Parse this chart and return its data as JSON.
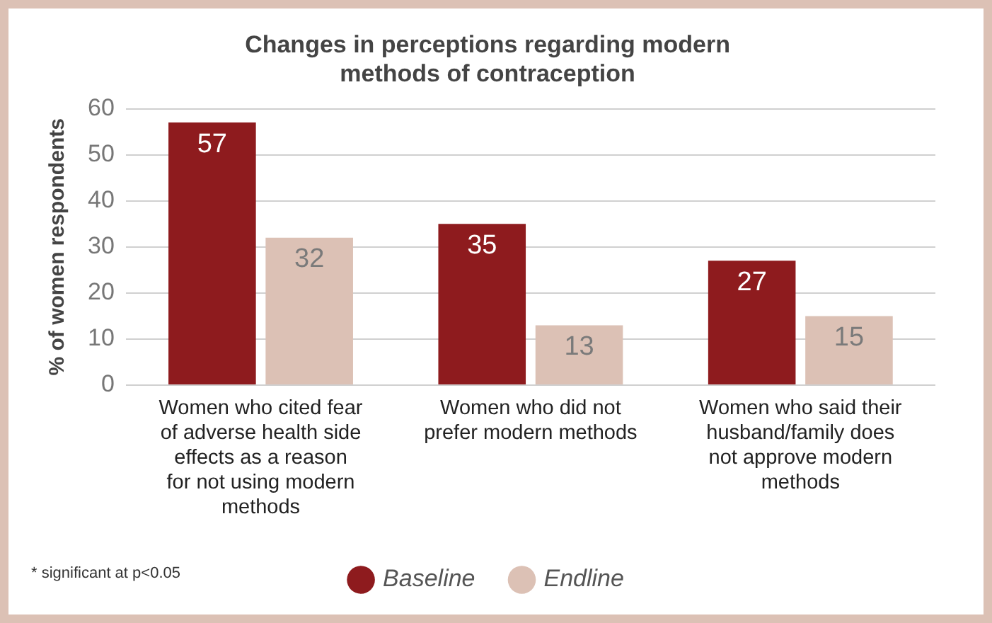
{
  "chart_data": {
    "type": "bar",
    "title": "Changes in perceptions regarding modern methods of contraception",
    "ylabel": "% of women respondents",
    "categories": [
      "Women who cited fear of adverse health side effects as a reason for not using modern methods",
      "Women who did not prefer modern methods",
      "Women who said their husband/family does not approve modern methods"
    ],
    "series": [
      {
        "name": "Baseline",
        "color": "#8e1b1e",
        "values": [
          57,
          35,
          27
        ]
      },
      {
        "name": "Endline",
        "color": "#dcc1b5",
        "values": [
          32,
          13,
          15
        ]
      }
    ],
    "ylim": [
      0,
      60
    ],
    "yticks": [
      0,
      10,
      20,
      30,
      40,
      50,
      60
    ],
    "grid": "y",
    "legend": "bottom",
    "data_labels": true,
    "annotations": [
      "* significant at p<0.05"
    ]
  }
}
